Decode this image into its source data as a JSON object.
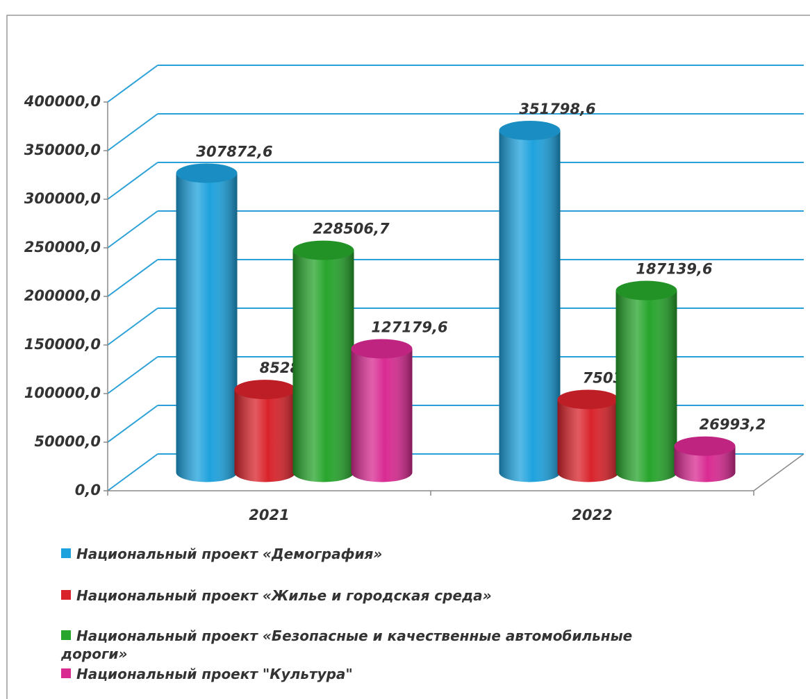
{
  "chart_data": {
    "type": "cylinder-bar",
    "categories": [
      "2021",
      "2022"
    ],
    "series": [
      {
        "name": "Национальный проект «Демография»",
        "color": "#1ea2dd",
        "values": [
          307872.6,
          351798.6
        ],
        "value_labels": [
          "307872,6",
          "351798,6"
        ]
      },
      {
        "name": "Национальный проект «Жилье и городская среда»",
        "color": "#d9232b",
        "values": [
          85281.8,
          75038.7
        ],
        "value_labels": [
          "85281,8",
          "75038,7"
        ]
      },
      {
        "name": "Национальный проект «Безопасные и качественные автомобильные дороги»",
        "color": "#27a52c",
        "values": [
          228506.7,
          187139.6
        ],
        "value_labels": [
          "228506,7",
          "187139,6"
        ]
      },
      {
        "name": "Национальный проект \"Культура\"",
        "color": "#d92a92",
        "values": [
          127179.6,
          26993.2
        ],
        "value_labels": [
          "127179,6",
          "26993,2"
        ]
      }
    ],
    "ylim": [
      0,
      400000
    ],
    "yticks": [
      {
        "value": 0,
        "label": "0,0"
      },
      {
        "value": 50000,
        "label": "50000,0"
      },
      {
        "value": 100000,
        "label": "100000,0"
      },
      {
        "value": 150000,
        "label": "150000,0"
      },
      {
        "value": 200000,
        "label": "200000,0"
      },
      {
        "value": 250000,
        "label": "250000,0"
      },
      {
        "value": 300000,
        "label": "300000,0"
      },
      {
        "value": 350000,
        "label": "350000,0"
      },
      {
        "value": 400000,
        "label": "400000,0"
      }
    ],
    "grid": true
  }
}
